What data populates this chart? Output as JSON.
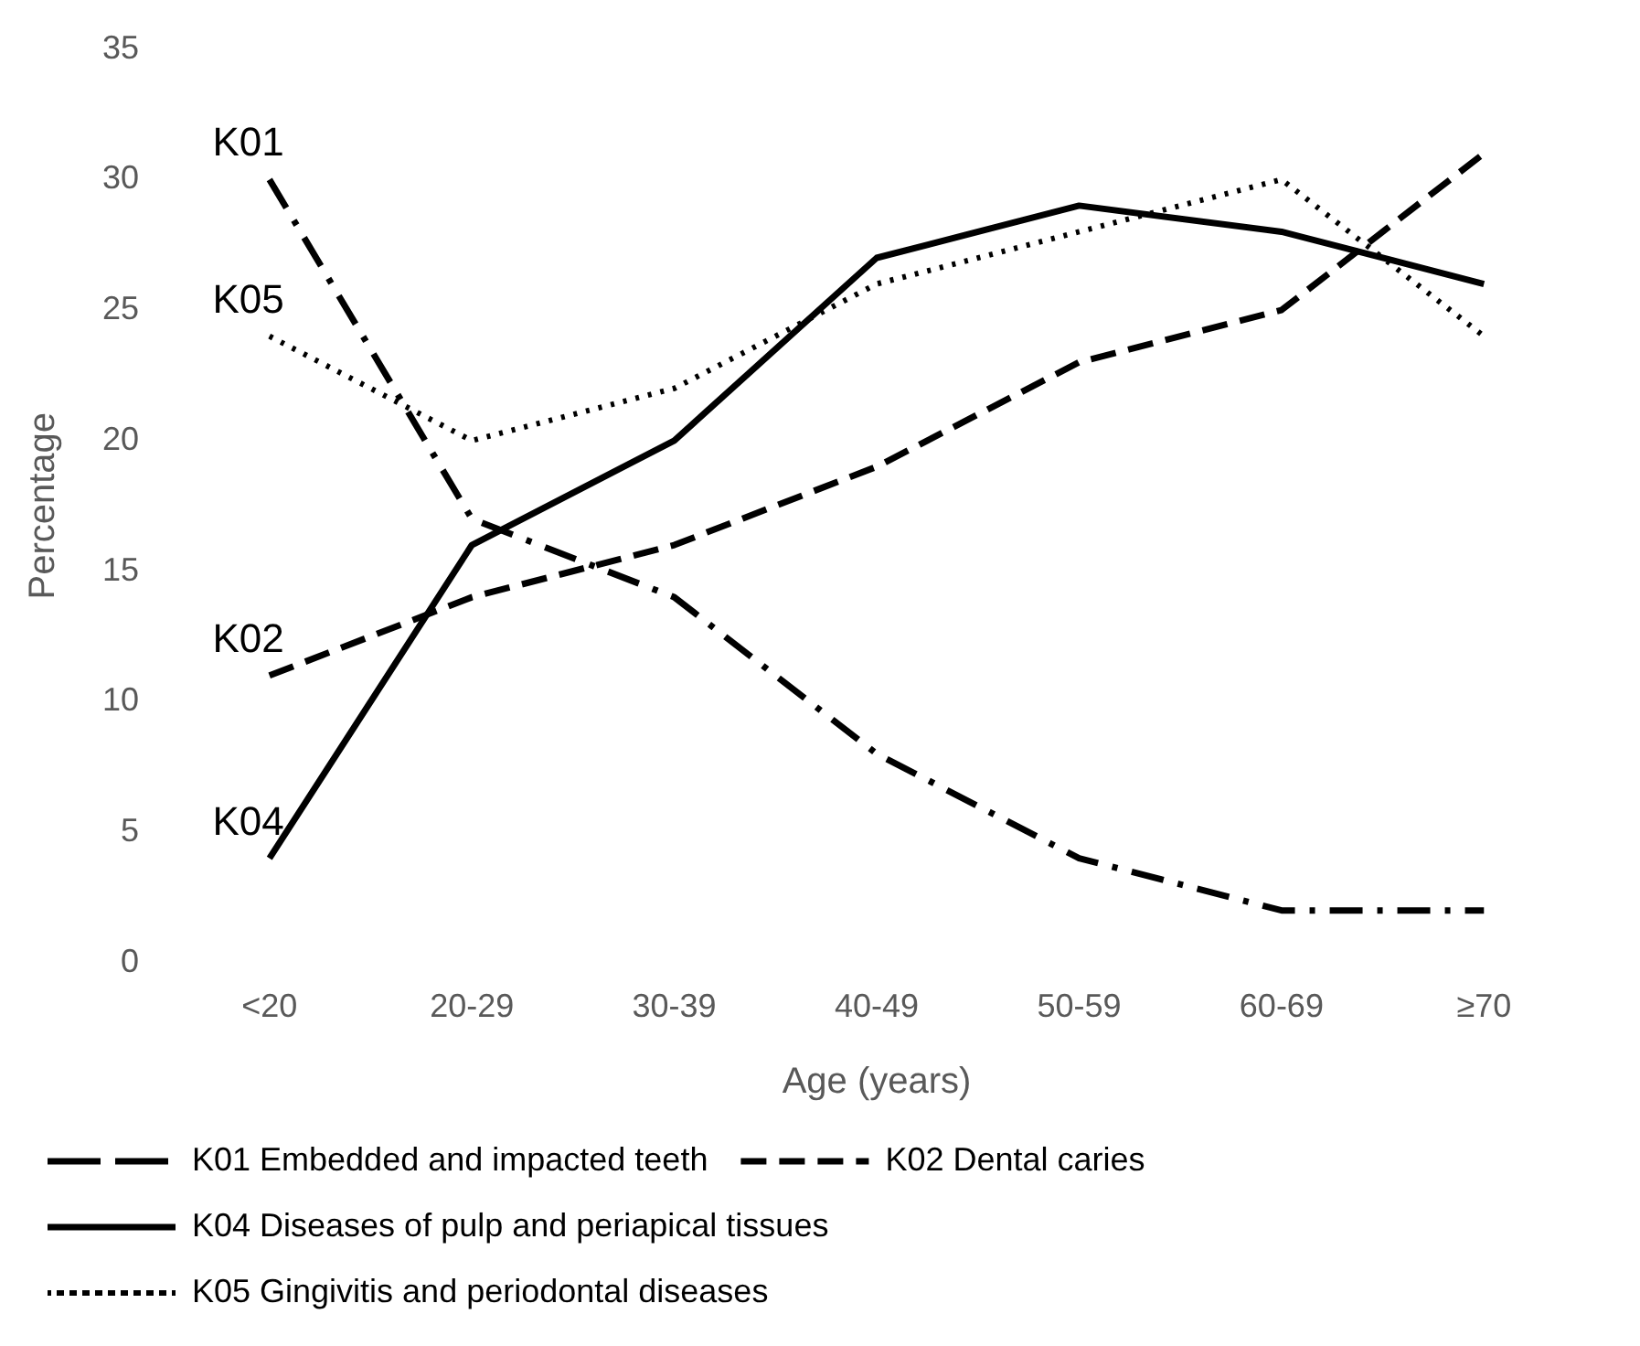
{
  "chart_data": {
    "type": "line",
    "xlabel": "Age (years)",
    "ylabel": "Percentage",
    "categories": [
      "<20",
      "20-29",
      "30-39",
      "40-49",
      "50-59",
      "60-69",
      "≥70"
    ],
    "series": [
      {
        "name": "K01 Embedded and impacted teeth",
        "color": "#000000",
        "line_style": "dashdot",
        "values": [
          30,
          17,
          14,
          8,
          4,
          2,
          2
        ]
      },
      {
        "name": "K02 Dental caries",
        "color": "#000000",
        "line_style": "dashed",
        "values": [
          11,
          14,
          16,
          19,
          23,
          25,
          31
        ]
      },
      {
        "name": "K04 Diseases of pulp and periapical tissues",
        "color": "#000000",
        "line_style": "solid",
        "values": [
          4,
          16,
          20,
          27,
          29,
          28,
          26
        ]
      },
      {
        "name": "K05 Gingivitis and periodontal diseases",
        "color": "#000000",
        "line_style": "dotted",
        "values": [
          24,
          20,
          22,
          26,
          28,
          30,
          24
        ]
      }
    ],
    "annotations": [
      {
        "text": "K01",
        "x": "<20",
        "y": 30
      },
      {
        "text": "K02",
        "x": "<20",
        "y": 11
      },
      {
        "text": "K04",
        "x": "<20",
        "y": 4
      },
      {
        "text": "K05",
        "x": "<20",
        "y": 24
      }
    ],
    "ylim": [
      0,
      35
    ],
    "yticks": [
      0,
      5,
      10,
      15,
      20,
      25,
      30,
      35
    ],
    "grid": false,
    "legend": "bottom",
    "marker": "none"
  }
}
